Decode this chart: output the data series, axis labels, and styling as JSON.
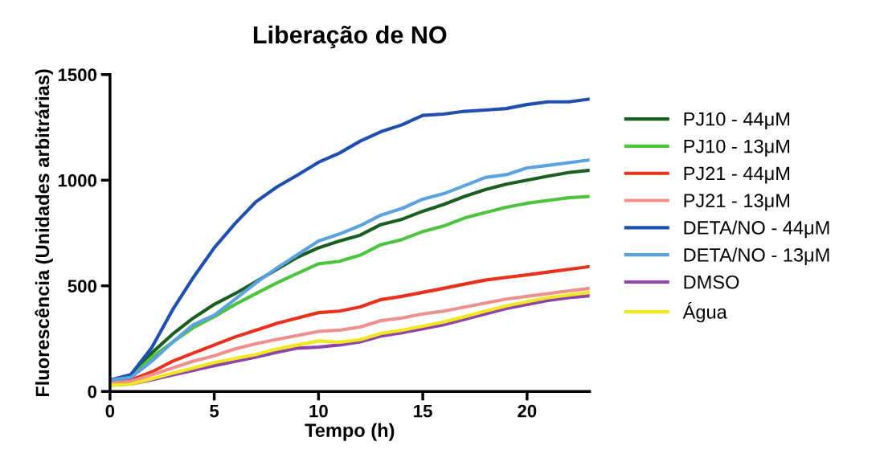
{
  "chart_data": {
    "type": "line",
    "title": "Liberação de NO",
    "xlabel": "Tempo (h)",
    "ylabel": "Fluorescência (Unidades arbitrárias)",
    "x": [
      0,
      1,
      2,
      3,
      4,
      5,
      6,
      7,
      8,
      9,
      10,
      11,
      12,
      13,
      14,
      15,
      16,
      17,
      18,
      19,
      20,
      21,
      22,
      23
    ],
    "xlim": [
      0,
      23
    ],
    "xticks": [
      0,
      5,
      10,
      15,
      20
    ],
    "ylim": [
      0,
      1500
    ],
    "yticks": [
      0,
      500,
      1000,
      1500
    ],
    "grid": false,
    "legend": "right",
    "marker": "none",
    "line_style": "solid",
    "series": [
      {
        "name": "PJ10 - 44μM",
        "color": "#1a5e20",
        "values": [
          54,
          73,
          182,
          271,
          348,
          412,
          463,
          520,
          578,
          636,
          680,
          712,
          740,
          790,
          815,
          853,
          885,
          923,
          955,
          981,
          1000,
          1019,
          1036,
          1047
        ]
      },
      {
        "name": "PJ10 - 13μM",
        "color": "#4cc43c",
        "values": [
          54,
          66,
          162,
          233,
          303,
          354,
          412,
          463,
          514,
          559,
          604,
          616,
          645,
          695,
          719,
          757,
          783,
          821,
          847,
          872,
          891,
          904,
          917,
          923
        ]
      },
      {
        "name": "PJ21 - 44μM",
        "color": "#e8321e",
        "values": [
          45,
          54,
          92,
          143,
          182,
          220,
          258,
          290,
          322,
          348,
          373,
          380,
          400,
          435,
          450,
          469,
          488,
          508,
          527,
          540,
          552,
          565,
          578,
          591
        ]
      },
      {
        "name": "PJ21 - 13μM",
        "color": "#f0908c",
        "values": [
          40,
          47,
          79,
          111,
          143,
          169,
          201,
          226,
          246,
          265,
          284,
          290,
          305,
          335,
          348,
          367,
          380,
          399,
          418,
          437,
          450,
          463,
          476,
          488
        ]
      },
      {
        "name": "DETA/NO - 44μM",
        "color": "#1f4fb0",
        "values": [
          54,
          80,
          207,
          386,
          540,
          680,
          795,
          898,
          968,
          1025,
          1085,
          1128,
          1185,
          1230,
          1262,
          1307,
          1313,
          1326,
          1332,
          1339,
          1358,
          1371,
          1371,
          1384
        ]
      },
      {
        "name": "DETA/NO - 13μM",
        "color": "#5ba3e0",
        "values": [
          54,
          66,
          143,
          233,
          316,
          361,
          437,
          514,
          584,
          648,
          712,
          745,
          785,
          835,
          866,
          910,
          936,
          974,
          1013,
          1026,
          1058,
          1070,
          1083,
          1096
        ]
      },
      {
        "name": "DMSO",
        "color": "#8e44ad",
        "values": [
          30,
          35,
          55,
          78,
          100,
          122,
          143,
          163,
          185,
          205,
          210,
          220,
          235,
          262,
          278,
          297,
          316,
          341,
          367,
          393,
          412,
          431,
          444,
          453
        ]
      },
      {
        "name": "Água",
        "color": "#f0e81e",
        "values": [
          30,
          35,
          60,
          86,
          111,
          137,
          156,
          175,
          201,
          220,
          239,
          233,
          245,
          275,
          290,
          309,
          329,
          354,
          380,
          405,
          425,
          444,
          456,
          469
        ]
      }
    ]
  }
}
